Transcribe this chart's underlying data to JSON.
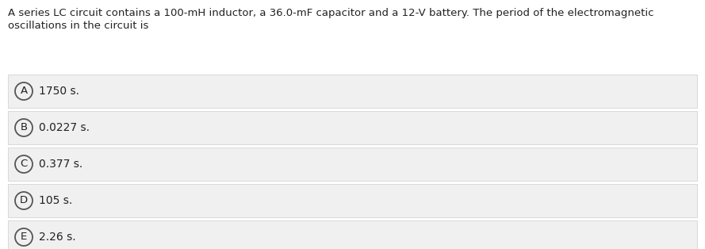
{
  "question_line1": "A series LC circuit contains a 100-mH inductor, a 36.0-mF capacitor and a 12-V battery. The period of the electromagnetic",
  "question_line2": "oscillations in the circuit is",
  "options": [
    {
      "letter": "A",
      "text": "1750 s."
    },
    {
      "letter": "B",
      "text": "0.0227 s."
    },
    {
      "letter": "C",
      "text": "0.377 s."
    },
    {
      "letter": "D",
      "text": "105 s."
    },
    {
      "letter": "E",
      "text": "2.26 s."
    }
  ],
  "bg_color": "#ffffff",
  "option_bg_color": "#f0f0f0",
  "option_border_color": "#cccccc",
  "question_font_size": 9.5,
  "option_font_size": 10,
  "letter_font_size": 9.5,
  "text_color": "#222222",
  "circle_edge_color": "#555555",
  "circle_face_color": "#f0f0f0",
  "fig_width": 8.89,
  "fig_height": 3.14,
  "dpi": 100
}
